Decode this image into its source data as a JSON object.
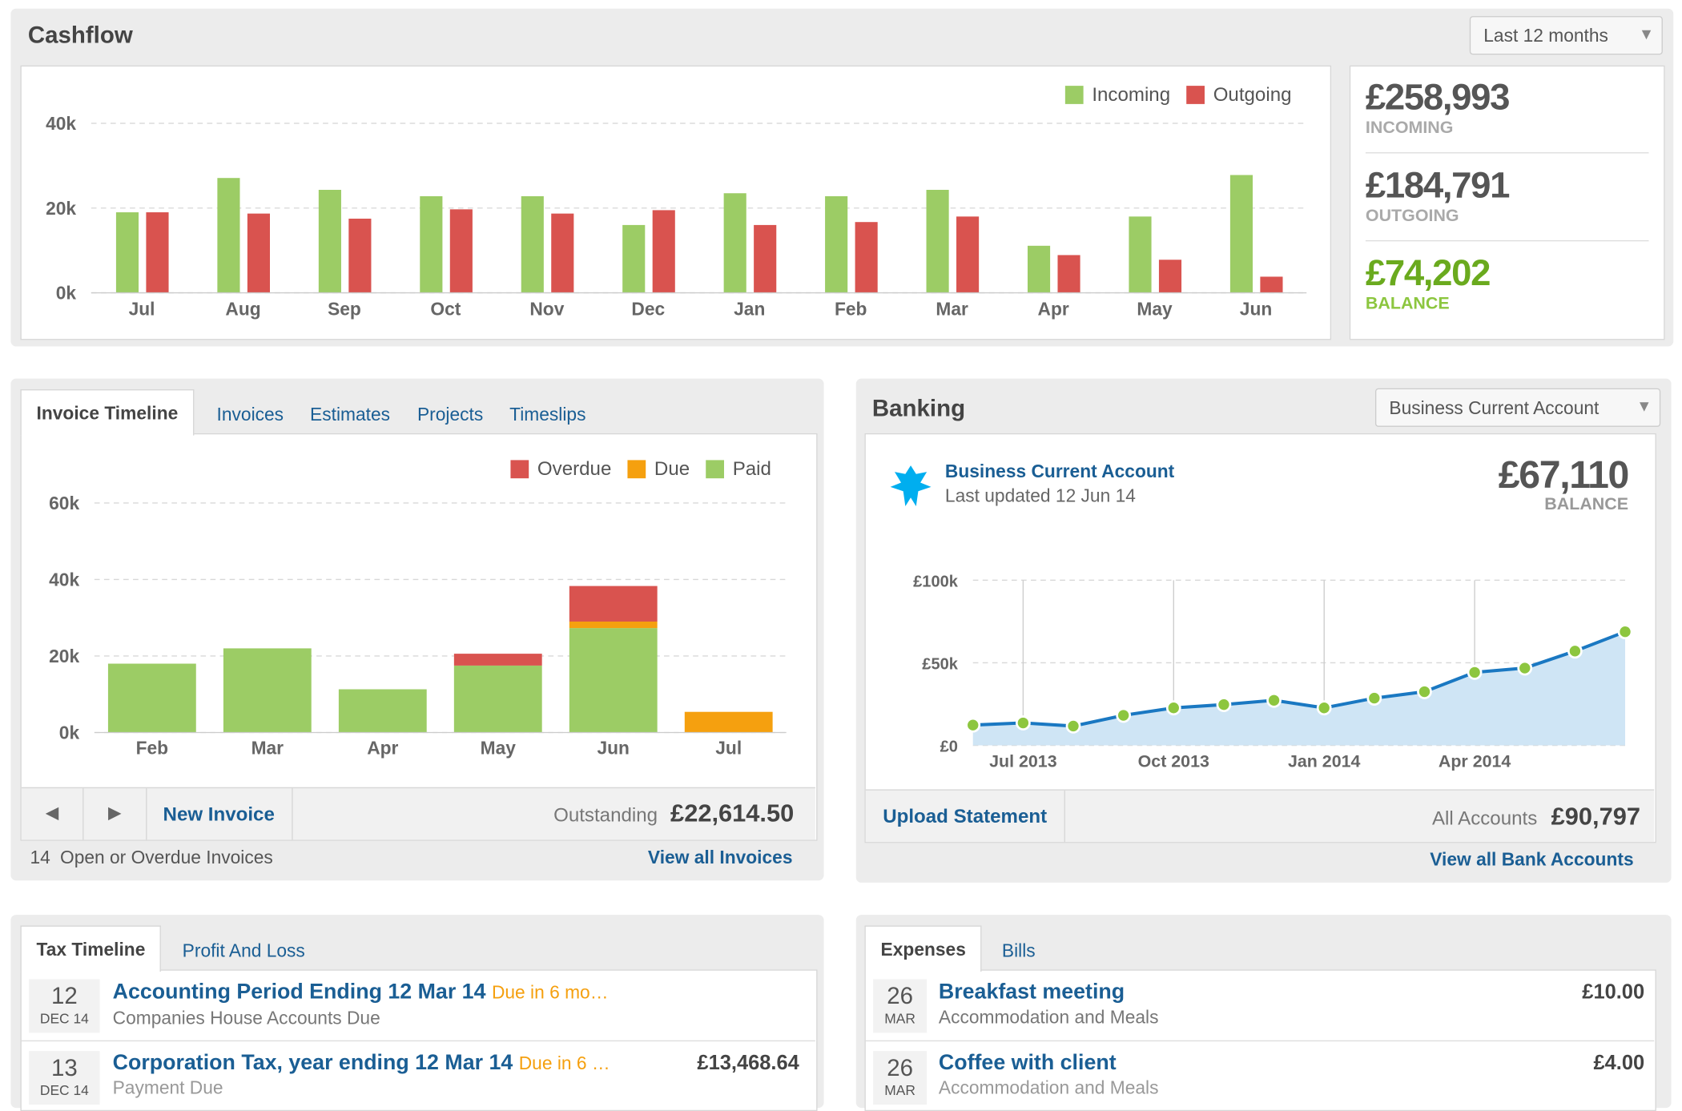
{
  "cashflow": {
    "title": "Cashflow",
    "period": "Last 12 months",
    "chart": {
      "type": "bar",
      "categories": [
        "Jul",
        "Aug",
        "Sep",
        "Oct",
        "Nov",
        "Dec",
        "Jan",
        "Feb",
        "Mar",
        "Apr",
        "May",
        "Jun"
      ],
      "series": [
        {
          "name": "Incoming",
          "color": "#9ccc65",
          "values": [
            19000,
            27100,
            24300,
            22800,
            22800,
            16000,
            23500,
            22800,
            24300,
            11100,
            18000,
            27800
          ]
        },
        {
          "name": "Outgoing",
          "color": "#d9534f",
          "values": [
            19000,
            18700,
            17500,
            19700,
            18700,
            19500,
            16000,
            16700,
            18000,
            8900,
            7800,
            3800
          ]
        }
      ],
      "ylim": [
        0,
        40000
      ],
      "yticks": [
        {
          "value": 0,
          "label": "0k"
        },
        {
          "value": 20000,
          "label": "20k"
        },
        {
          "value": 40000,
          "label": "40k"
        }
      ],
      "grid": true
    },
    "summary": [
      {
        "amount": "£258,993",
        "label": "INCOMING"
      },
      {
        "amount": "£184,791",
        "label": "OUTGOING"
      },
      {
        "amount": "£74,202",
        "label": "BALANCE"
      }
    ]
  },
  "invoices": {
    "tabs": [
      "Invoice Timeline",
      "Invoices",
      "Estimates",
      "Projects",
      "Timeslips"
    ],
    "chart": {
      "type": "stacked_bar",
      "categories": [
        "Feb",
        "Mar",
        "Apr",
        "May",
        "Jun",
        "Jul"
      ],
      "series": [
        {
          "name": "Paid",
          "color": "#9ccc65",
          "values": [
            18000,
            22000,
            11300,
            17500,
            27300,
            0
          ]
        },
        {
          "name": "Due",
          "color": "#f5a00f",
          "values": [
            0,
            0,
            0,
            0,
            1700,
            5400
          ]
        },
        {
          "name": "Overdue",
          "color": "#d9534f",
          "values": [
            0,
            0,
            0,
            3100,
            9300,
            0
          ]
        }
      ],
      "ylim": [
        0,
        60000
      ],
      "yticks": [
        {
          "value": 0,
          "label": "0k"
        },
        {
          "value": 20000,
          "label": "20k"
        },
        {
          "value": 40000,
          "label": "40k"
        },
        {
          "value": 60000,
          "label": "60k"
        }
      ],
      "grid": true
    },
    "new_invoice": "New Invoice",
    "outstanding_label": "Outstanding",
    "outstanding": "£22,614.50",
    "open_count": "14",
    "open_text": "Open or Overdue Invoices",
    "view_all": "View all Invoices"
  },
  "banking": {
    "title": "Banking",
    "account_select": "Business Current Account",
    "account_name": "Business Current Account",
    "last_updated": "Last updated 12 Jun 14",
    "balance": "£67,110",
    "balance_label": "BALANCE",
    "chart": {
      "type": "area",
      "categories": [
        null,
        "Jul 2013",
        null,
        null,
        "Oct 2013",
        null,
        null,
        "Jan 2014",
        null,
        null,
        "Apr 2014",
        null,
        null,
        null
      ],
      "series": [
        {
          "color": "#1a78c2",
          "values": [
            12300,
            13600,
            11700,
            18200,
            22700,
            24700,
            27300,
            22700,
            28600,
            32500,
            44200,
            46800,
            57100,
            68800
          ]
        }
      ],
      "ylim": [
        0,
        100000
      ],
      "yticks": [
        {
          "value": 0,
          "label": "£0"
        },
        {
          "value": 50000,
          "label": "£50k"
        },
        {
          "value": 100000,
          "label": "£100k"
        }
      ],
      "grid": true
    },
    "upload": "Upload Statement",
    "all_accounts_label": "All Accounts",
    "all_accounts": "£90,797",
    "view_all": "View all Bank Accounts"
  },
  "tax": {
    "tabs": [
      "Tax Timeline",
      "Profit And Loss"
    ],
    "items": [
      {
        "day": "12",
        "month": "DEC 14",
        "title": "Accounting Period Ending 12 Mar 14",
        "due": "Due in 6 mo…",
        "subtitle": "Companies House Accounts Due"
      },
      {
        "day": "13",
        "month": "DEC 14",
        "title": "Corporation Tax, year ending 12 Mar 14",
        "due": "Due in 6 …",
        "subtitle": "Payment Due",
        "amount": "£13,468.64"
      }
    ]
  },
  "expenses": {
    "tabs": [
      "Expenses",
      "Bills"
    ],
    "items": [
      {
        "day": "26",
        "month": "MAR",
        "title": "Breakfast meeting",
        "subtitle": "Accommodation and Meals",
        "amount": "£10.00"
      },
      {
        "day": "26",
        "month": "MAR",
        "title": "Coffee with client",
        "subtitle": "Accommodation and Meals",
        "amount": "£4.00"
      }
    ]
  }
}
